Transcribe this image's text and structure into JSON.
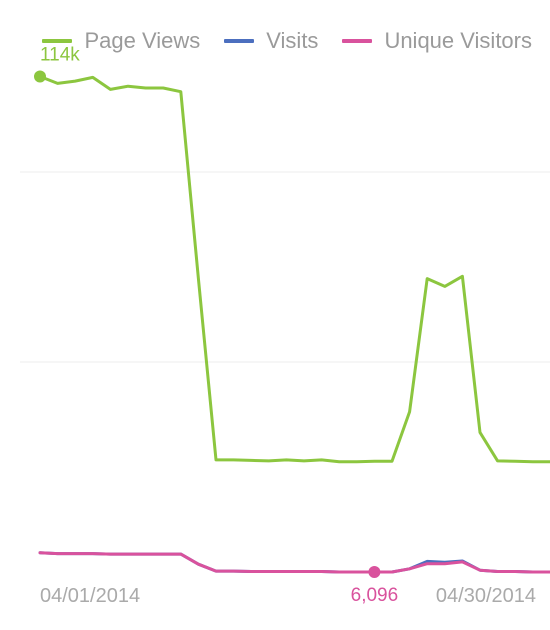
{
  "chart_data": {
    "type": "line",
    "title": "",
    "xlabel": "",
    "ylabel": "",
    "x_tick_labels": [
      "04/01/2014",
      "04/30/2014"
    ],
    "x_start_date": "2014-04-01",
    "x_step_days": 1,
    "ylim": [
      0,
      125000
    ],
    "grid": true,
    "legend_position": "top-right",
    "series": [
      {
        "name": "Page Views",
        "color": "#8cc63f",
        "values": [
          114000,
          112500,
          113000,
          113800,
          111200,
          111900,
          111500,
          111500,
          110700,
          70000,
          30500,
          30500,
          30400,
          30300,
          30500,
          30300,
          30500,
          30100,
          30100,
          30200,
          30200,
          41000,
          70000,
          68300,
          70500,
          36500,
          30300,
          30200,
          30100,
          30100
        ]
      },
      {
        "name": "Visits",
        "color": "#4c6fbf",
        "values": [
          10300,
          10100,
          10100,
          10100,
          10000,
          10000,
          10000,
          10000,
          10000,
          7800,
          6300,
          6300,
          6200,
          6200,
          6200,
          6200,
          6200,
          6100,
          6100,
          6100,
          6100,
          6800,
          8400,
          8200,
          8500,
          6500,
          6200,
          6200,
          6100,
          6100
        ]
      },
      {
        "name": "Unique Visitors",
        "color": "#d9529d",
        "values": [
          10300,
          10100,
          10100,
          10100,
          10000,
          10000,
          10000,
          10000,
          10000,
          7800,
          6300,
          6300,
          6200,
          6200,
          6200,
          6200,
          6200,
          6100,
          6100,
          6096,
          6100,
          6800,
          7900,
          7900,
          8300,
          6500,
          6200,
          6200,
          6100,
          6100
        ]
      }
    ],
    "annotations": [
      {
        "series": "Page Views",
        "index": 0,
        "label": "114k"
      },
      {
        "series": "Unique Visitors",
        "index": 19,
        "label": "6,096"
      }
    ]
  }
}
